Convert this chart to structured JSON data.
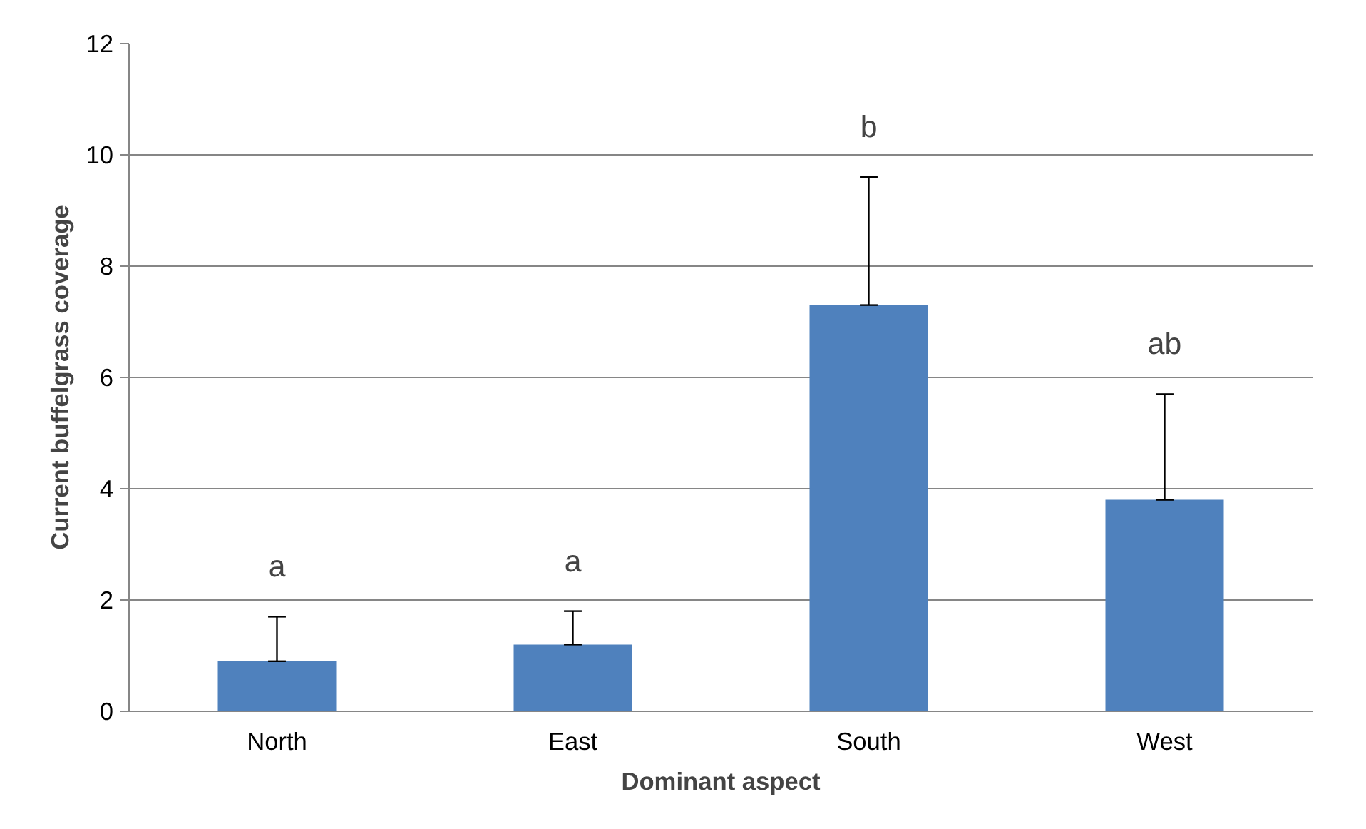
{
  "chart_data": {
    "type": "bar",
    "xlabel": "Dominant aspect",
    "ylabel": "Current buffelgrass coverage",
    "categories": [
      "North",
      "East",
      "South",
      "West"
    ],
    "values": [
      0.9,
      1.2,
      7.3,
      3.8
    ],
    "errors": [
      [
        0.9,
        1.7
      ],
      [
        1.2,
        1.8
      ],
      [
        7.3,
        9.6
      ],
      [
        3.8,
        5.7
      ]
    ],
    "color": "#4f81bd",
    "ylim": [
      0,
      12
    ],
    "yticks": [
      0,
      2,
      4,
      6,
      8,
      10,
      12
    ],
    "grid": "y",
    "annotations": [
      "a",
      "a",
      "b",
      "ab"
    ]
  }
}
